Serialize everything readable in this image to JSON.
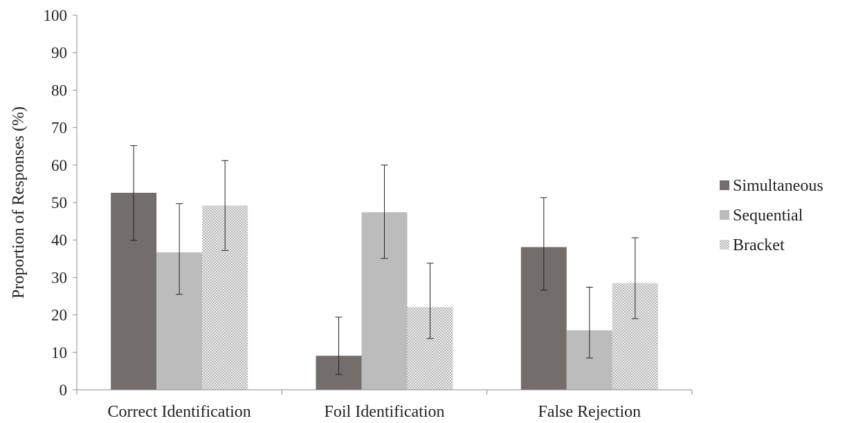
{
  "chart_data": {
    "type": "bar",
    "title": "",
    "xlabel": "",
    "ylabel": "Proportion of  Responses (%)",
    "ylim": [
      0,
      100
    ],
    "yticks": [
      "0",
      "10",
      "20",
      "30",
      "40",
      "50",
      "60",
      "70",
      "80",
      "90",
      "100"
    ],
    "categories": [
      "Correct Identification",
      "Foil Identification",
      "False Rejection"
    ],
    "series": [
      {
        "name": "Simultaneous",
        "color": "#736e6b",
        "pattern": "solid",
        "values": [
          52.6,
          9.1,
          38.1
        ],
        "error_low": [
          39.9,
          4.1,
          26.6
        ],
        "error_high": [
          65.2,
          19.4,
          51.3
        ]
      },
      {
        "name": "Sequential",
        "color": "#bcbcbc",
        "pattern": "solid",
        "values": [
          36.7,
          47.4,
          15.9
        ],
        "error_low": [
          25.5,
          35.1,
          8.5
        ],
        "error_high": [
          49.7,
          60.0,
          27.4
        ]
      },
      {
        "name": "Bracket",
        "color": "#c8c8c8",
        "pattern": "checkered",
        "values": [
          49.2,
          22.1,
          28.5
        ],
        "error_low": [
          37.2,
          13.7,
          19.0
        ],
        "error_high": [
          61.2,
          33.8,
          40.6
        ]
      }
    ],
    "legend_position": "right",
    "grid": false
  }
}
